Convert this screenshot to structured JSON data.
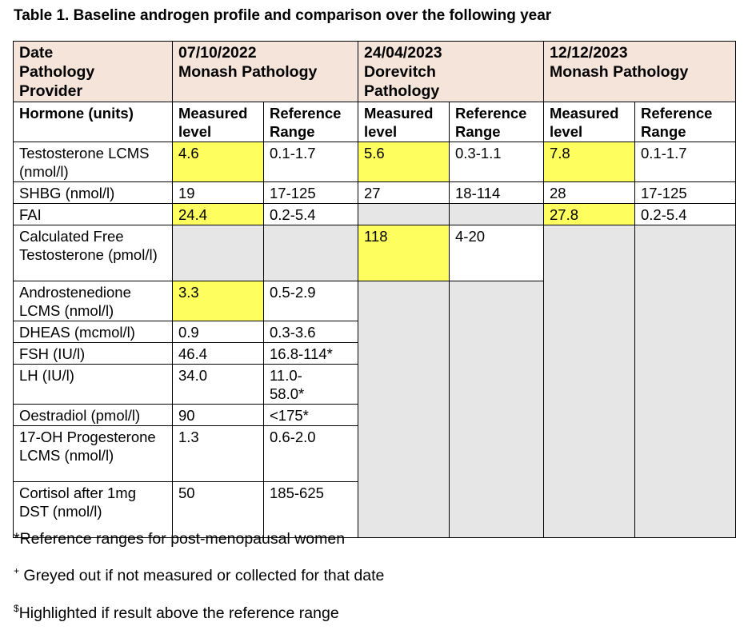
{
  "title": "Table 1. Baseline androgen profile and comparison over the following year",
  "header": {
    "row_label": [
      "Date",
      "Pathology",
      "Provider"
    ],
    "dates": [
      {
        "date": "07/10/2022",
        "provider": "Monash Pathology"
      },
      {
        "date": "24/04/2023",
        "provider": "Dorevitch Pathology"
      },
      {
        "date": "12/12/2023",
        "provider": "Monash Pathology"
      }
    ]
  },
  "subheader": {
    "hormone": "Hormone (units)",
    "measured": "Measured level",
    "reference": "Reference Range"
  },
  "rows": [
    {
      "hormone": "Testosterone LCMS (nmol/l)",
      "c1": "4.6",
      "r1": "0.1-1.7",
      "c2": "5.6",
      "r2": "0.3-1.1",
      "c3": "7.8",
      "r3": "0.1-1.7"
    },
    {
      "hormone": "SHBG (nmol/l)",
      "c1": "19",
      "r1": "17-125",
      "c2": "27",
      "r2": "18-114",
      "c3": "28",
      "r3": "17-125"
    },
    {
      "hormone": "FAI",
      "c1": "24.4",
      "r1": "0.2-5.4",
      "c2": "",
      "r2": "",
      "c3": "27.8",
      "r3": "0.2-5.4"
    },
    {
      "hormone": "Calculated Free Testosterone (pmol/l)",
      "c1": "",
      "r1": "",
      "c2": "118",
      "r2": "4-20"
    },
    {
      "hormone": "Androstenedione LCMS (nmol/l)",
      "c1": "3.3",
      "r1": "0.5-2.9"
    },
    {
      "hormone": "DHEAS (mcmol/l)",
      "c1": "0.9",
      "r1": "0.3-3.6"
    },
    {
      "hormone": "FSH (IU/l)",
      "c1": "46.4",
      "r1": "16.8-114*"
    },
    {
      "hormone": "LH (IU/l)",
      "c1": "34.0",
      "r1": "11.0-58.0*"
    },
    {
      "hormone": "Oestradiol (pmol/l)",
      "c1": "90",
      "r1": "<175*"
    },
    {
      "hormone": "17-OH Progesterone LCMS (nmol/l)",
      "c1": "1.3",
      "r1": "0.6-2.0"
    },
    {
      "hormone": "Cortisol after 1mg DST (nmol/l)",
      "c1": "50",
      "r1": "185-625"
    }
  ],
  "colors": {
    "header_bg": "#f5e4da",
    "highlight": "#fefe5e",
    "greyed": "#e6e6e6"
  },
  "footnotes": [
    {
      "mark": "",
      "text": "*Reference ranges for post-menopausal women"
    },
    {
      "mark": "+",
      "text": " Greyed out if not measured or collected for that date"
    },
    {
      "mark": "$",
      "text": "Highlighted if result above the reference range"
    }
  ]
}
